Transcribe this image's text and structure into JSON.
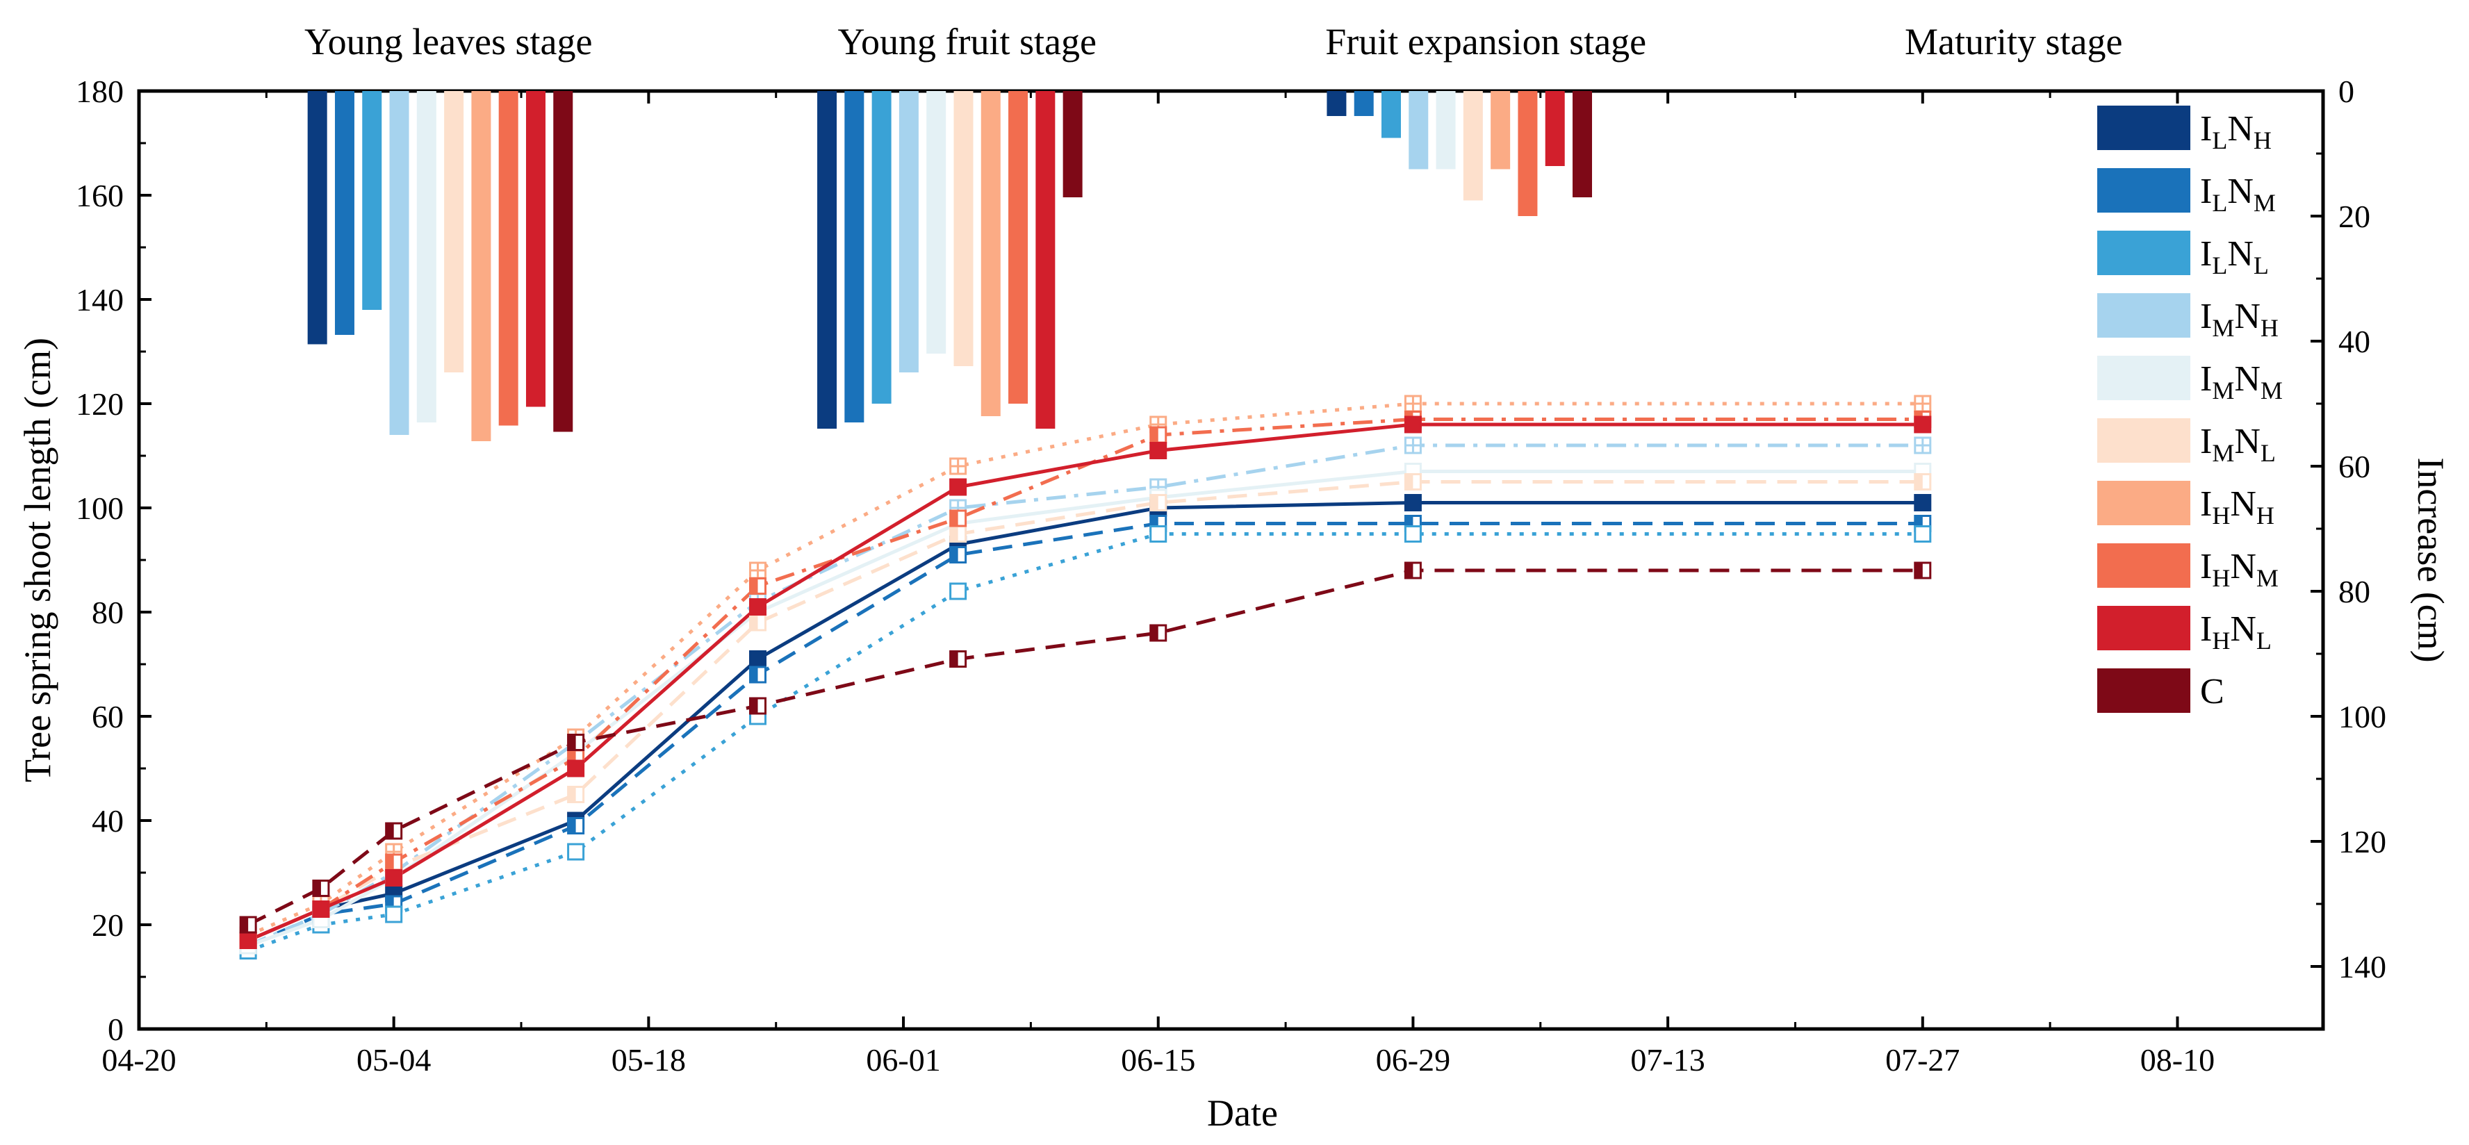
{
  "chart_data": {
    "type": "line",
    "xlabel": "Date",
    "ylabel": "Tree spring shoot length (cm)",
    "y2label": "Increase (cm)",
    "ylim": [
      0,
      180
    ],
    "y2lim": [
      0,
      150
    ],
    "x_days": [
      0,
      14,
      28,
      42,
      56,
      70,
      84,
      98,
      112
    ],
    "x_tick_labels": [
      "04-20",
      "05-04",
      "05-18",
      "06-01",
      "06-15",
      "06-29",
      "07-13",
      "07-27",
      "08-10"
    ],
    "y_ticks": [
      0,
      20,
      40,
      60,
      80,
      100,
      120,
      140,
      160,
      180
    ],
    "y2_ticks": [
      0,
      20,
      40,
      60,
      80,
      100,
      120,
      140
    ],
    "legend_position": "right",
    "stages": [
      {
        "label": "Young leaves stage",
        "day": 17
      },
      {
        "label": "Young fruit stage",
        "day": 45.5
      },
      {
        "label": "Fruit expansion stage",
        "day": 74
      },
      {
        "label": "Maturity stage",
        "day": 103
      }
    ],
    "sample_days": [
      6,
      10,
      14,
      24,
      34,
      45,
      56,
      70
    ],
    "series": [
      {
        "name": "ILNH",
        "main": "I",
        "sub1": "L",
        "main2": "N",
        "sub2": "H",
        "color": "#0b3c80",
        "dash": "",
        "marker": "filled",
        "values": [
          17,
          23,
          26,
          40,
          71,
          93,
          100,
          101
        ],
        "bar_base_day": 9.8,
        "bars": [
          40.5,
          54,
          4
        ]
      },
      {
        "name": "ILNM",
        "main": "I",
        "sub1": "L",
        "main2": "N",
        "sub2": "M",
        "color": "#1a72ba",
        "dash": "28,16",
        "marker": "half",
        "values": [
          16,
          22,
          24,
          39,
          68,
          91,
          97,
          97
        ],
        "bar_base_day": 11.3,
        "bars": [
          39,
          53,
          4
        ]
      },
      {
        "name": "ILNL",
        "main": "I",
        "sub1": "L",
        "main2": "N",
        "sub2": "L",
        "color": "#3aa2d6",
        "dash": "6,12",
        "marker": "open",
        "values": [
          15,
          20,
          22,
          34,
          60,
          84,
          95,
          95
        ],
        "bar_base_day": 12.8,
        "bars": [
          35,
          50,
          7.5
        ]
      },
      {
        "name": "IMNH",
        "main": "I",
        "sub1": "M",
        "main2": "N",
        "sub2": "H",
        "color": "#a6d3ee",
        "dash": "28,12,6,12",
        "marker": "plus",
        "values": [
          16,
          22,
          30,
          55,
          82,
          100,
          104,
          112
        ],
        "bar_base_day": 14.3,
        "bars": [
          55,
          45,
          12.5
        ]
      },
      {
        "name": "IMNM",
        "main": "I",
        "sub1": "M",
        "main2": "N",
        "sub2": "M",
        "color": "#e4f1f5",
        "dash": "",
        "marker": "open",
        "values": [
          16,
          21,
          29,
          53,
          80,
          97,
          102,
          107
        ],
        "bar_base_day": 15.8,
        "bars": [
          53,
          42,
          12.5
        ]
      },
      {
        "name": "IMNL",
        "main": "I",
        "sub1": "M",
        "main2": "N",
        "sub2": "L",
        "color": "#fde0cc",
        "dash": "28,16",
        "marker": "half",
        "values": [
          17,
          23,
          31,
          45,
          78,
          95,
          101,
          105
        ],
        "bar_base_day": 17.3,
        "bars": [
          45,
          44,
          17.5
        ]
      },
      {
        "name": "IHNH",
        "main": "I",
        "sub1": "H",
        "main2": "N",
        "sub2": "H",
        "color": "#fbab85",
        "dash": "6,12",
        "marker": "plus",
        "values": [
          18,
          24,
          34,
          56,
          88,
          108,
          116,
          120
        ],
        "bar_base_day": 18.8,
        "bars": [
          56,
          52,
          12.5
        ]
      },
      {
        "name": "IHNM",
        "main": "I",
        "sub1": "H",
        "main2": "N",
        "sub2": "M",
        "color": "#f26d4f",
        "dash": "28,12,6,12",
        "marker": "half",
        "values": [
          17,
          23,
          32,
          52,
          85,
          98,
          114,
          117
        ],
        "bar_base_day": 20.3,
        "bars": [
          53.5,
          50,
          20
        ]
      },
      {
        "name": "IHNL",
        "main": "I",
        "sub1": "H",
        "main2": "N",
        "sub2": "L",
        "color": "#d21f2c",
        "dash": "",
        "marker": "filled",
        "values": [
          17,
          23,
          29,
          50,
          81,
          104,
          111,
          116
        ],
        "bar_base_day": 21.8,
        "bars": [
          50.5,
          54,
          12
        ]
      },
      {
        "name": "C",
        "main": "C",
        "sub1": "",
        "main2": "",
        "sub2": "",
        "color": "#7e0917",
        "dash": "28,16",
        "marker": "half",
        "values": [
          20,
          27,
          38,
          55,
          62,
          71,
          76,
          88
        ],
        "bar_base_day": 23.3,
        "bars": [
          54.5,
          17,
          17
        ]
      }
    ]
  }
}
